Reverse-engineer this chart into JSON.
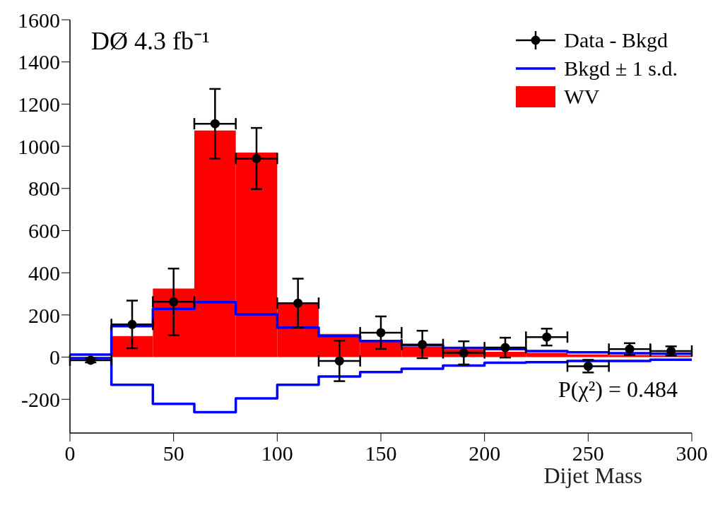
{
  "chart_data": {
    "type": "histogram",
    "xlabel": "Dijet Mass",
    "annotations": [
      "DØ 4.3 fb⁻¹",
      "P(χ²) = 0.484"
    ],
    "xlim": [
      0,
      300
    ],
    "xticks": [
      0,
      50,
      100,
      150,
      200,
      250,
      300
    ],
    "ylim": [
      -360,
      1600
    ],
    "yticks": [
      -200,
      0,
      200,
      400,
      600,
      800,
      1000,
      1200,
      1400,
      1600
    ],
    "legend": "top right",
    "grid": false,
    "series": [
      {
        "name": "WV",
        "color": "#ff0000",
        "bins": [
          0,
          20,
          40,
          60,
          80,
          100,
          120,
          140,
          160,
          180,
          200,
          220,
          240,
          260,
          280,
          300
        ],
        "values": [
          0,
          100,
          325,
          1075,
          970,
          255,
          110,
          73,
          50,
          38,
          25,
          20,
          13,
          10,
          8
        ]
      },
      {
        "type": "step",
        "name": "Bkgd ± 1 s.d.",
        "color": "#0000ff",
        "x": [
          0,
          20,
          40,
          60,
          80,
          100,
          120,
          140,
          160,
          180,
          200,
          220,
          240,
          260,
          280,
          300
        ],
        "values": [
          12,
          147,
          229,
          261,
          203,
          140,
          100,
          76,
          56,
          44,
          38,
          29,
          23,
          19,
          16,
          16
        ]
      },
      {
        "type": "step",
        "color": "#0000ff",
        "x": [
          0,
          20,
          40,
          60,
          80,
          100,
          120,
          140,
          160,
          180,
          200,
          220,
          240,
          260,
          280,
          300
        ],
        "values": [
          -5,
          -131,
          -222,
          -261,
          -196,
          -131,
          -92,
          -71,
          -55,
          -40,
          -27,
          -24,
          -18,
          -18,
          -12,
          -12
        ]
      },
      {
        "type": "scatter",
        "name": "Data - Bkgd",
        "color": "#000000",
        "marker": "circle",
        "x": [
          10,
          30,
          50,
          70,
          90,
          110,
          130,
          150,
          170,
          190,
          210,
          230,
          250,
          270,
          290
        ],
        "values": [
          -15,
          155,
          262,
          1107,
          942,
          256,
          -18,
          116,
          60,
          20,
          45,
          95,
          -43,
          38,
          29
        ],
        "errors": [
          10,
          113,
          158,
          165,
          145,
          116,
          96,
          77,
          65,
          55,
          47,
          40,
          30,
          28,
          22
        ],
        "xerrors": [
          10,
          10,
          10,
          10,
          10,
          10,
          10,
          10,
          10,
          10,
          10,
          10,
          10,
          10,
          10
        ]
      }
    ]
  }
}
